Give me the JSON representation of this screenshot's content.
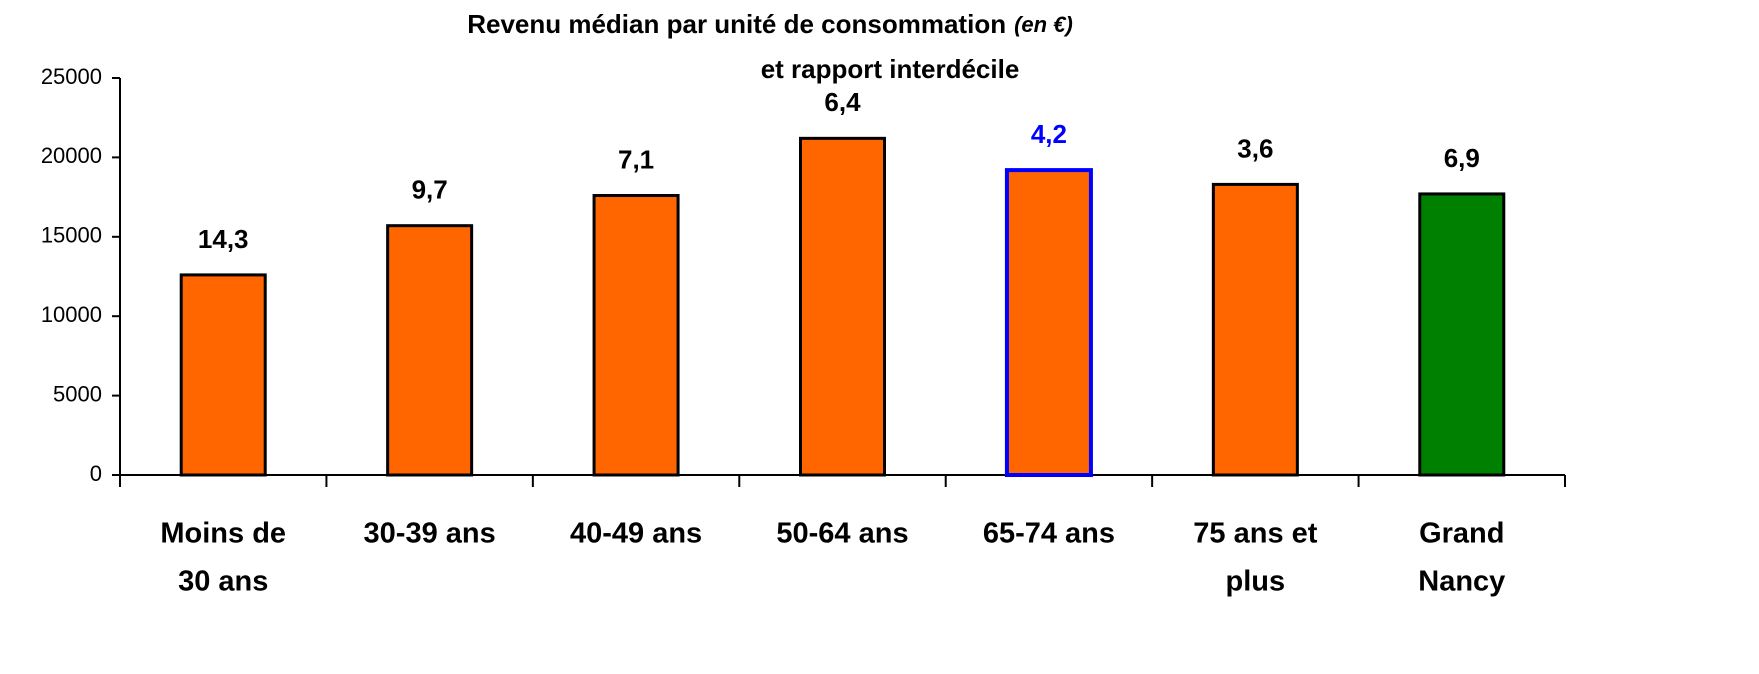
{
  "chart_data": {
    "type": "bar",
    "title": "Revenu médian par unité de consommation",
    "title_note": "(en €)",
    "subtitle": "et rapport interdécile",
    "categories": [
      [
        "Moins de",
        "30 ans"
      ],
      [
        "30-39 ans"
      ],
      [
        "40-49 ans"
      ],
      [
        "50-64 ans"
      ],
      [
        "65-74 ans"
      ],
      [
        "75 ans et",
        "plus"
      ],
      [
        "Grand",
        "Nancy"
      ]
    ],
    "values": [
      12600,
      15700,
      17600,
      21200,
      19200,
      18300,
      17700
    ],
    "ratio_labels": [
      "14,3",
      "9,7",
      "7,1",
      "6,4",
      "4,2",
      "3,6",
      "6,9"
    ],
    "colors": [
      "#ff6600",
      "#ff6600",
      "#ff6600",
      "#ff6600",
      "#ff6600",
      "#ff6600",
      "#008000"
    ],
    "edge_colors": [
      "#000000",
      "#000000",
      "#000000",
      "#000000",
      "#0000ff",
      "#000000",
      "#000000"
    ],
    "label_colors": [
      "#000000",
      "#000000",
      "#000000",
      "#000000",
      "#0000ff",
      "#000000",
      "#000000"
    ],
    "ylim": [
      0,
      25000
    ],
    "yticks": [
      0,
      5000,
      10000,
      15000,
      20000,
      25000
    ],
    "grid": false
  }
}
